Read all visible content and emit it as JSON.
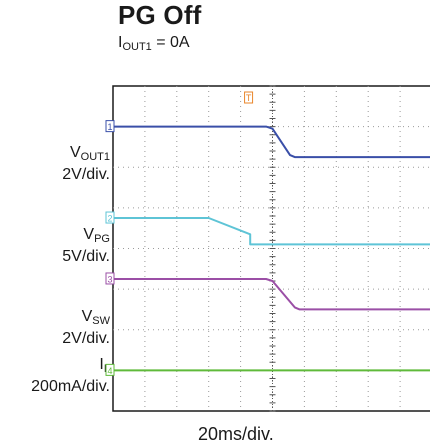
{
  "title": "PG Off",
  "subtitle": {
    "prefix": "I",
    "sub": "OUT1",
    "suffix": " = 0A"
  },
  "channels": [
    {
      "name_main": "V",
      "name_sub": "OUT1",
      "scale": "2V/div.",
      "marker": "1",
      "color": "#3a4fa8"
    },
    {
      "name_main": "V",
      "name_sub": "PG",
      "scale": "5V/div.",
      "marker": "2",
      "color": "#5ec4d6"
    },
    {
      "name_main": "V",
      "name_sub": "SW",
      "scale": "2V/div.",
      "marker": "3",
      "color": "#9b4fa6"
    },
    {
      "name_main": "I",
      "name_sub": "L",
      "scale": "200mA/div.",
      "marker": "4",
      "color": "#5fba3a"
    }
  ],
  "trigger_marker": "T",
  "trigger_color": "#e8852a",
  "xlabel": "20ms/div.",
  "chart_data": {
    "type": "line",
    "title": "PG Off",
    "xlabel": "20ms/div.",
    "ylabel": "",
    "x_unit": "divisions",
    "y_unit": "divisions",
    "xlim": [
      0,
      10
    ],
    "ylim": [
      0,
      8
    ],
    "grid": true,
    "series": [
      {
        "name": "VOUT1",
        "x": [
          0,
          4.8,
          5.0,
          5.55,
          5.7,
          10
        ],
        "y": [
          7.0,
          7.0,
          6.95,
          6.3,
          6.25,
          6.25
        ]
      },
      {
        "name": "VPG",
        "x": [
          0,
          3.0,
          4.3,
          4.3,
          10
        ],
        "y": [
          4.75,
          4.75,
          4.35,
          4.1,
          4.1
        ]
      },
      {
        "name": "VSW",
        "x": [
          0,
          4.8,
          5.0,
          5.7,
          5.85,
          10
        ],
        "y": [
          3.25,
          3.25,
          3.2,
          2.55,
          2.5,
          2.5
        ]
      },
      {
        "name": "IL",
        "x": [
          0,
          10
        ],
        "y": [
          1.0,
          1.0
        ]
      }
    ]
  }
}
